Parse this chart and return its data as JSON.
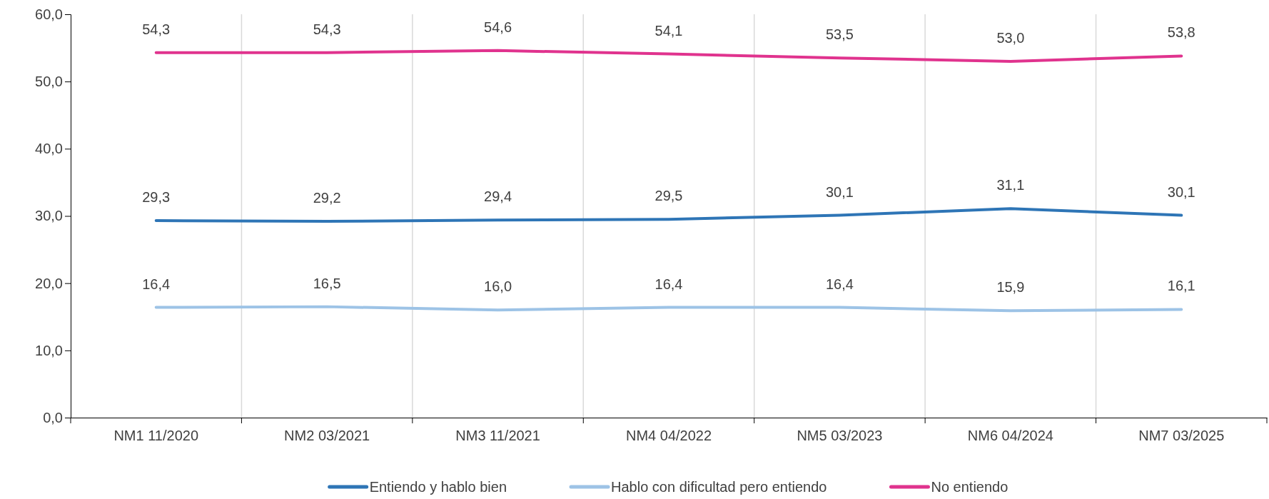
{
  "chart_data": {
    "type": "line",
    "categories": [
      "NM1 11/2020",
      "NM2 03/2021",
      "NM3 11/2021",
      "NM4 04/2022",
      "NM5 03/2023",
      "NM6 04/2024",
      "NM7 03/2025"
    ],
    "series": [
      {
        "name": "Entiendo y hablo bien",
        "color": "#2e75b6",
        "values": [
          29.3,
          29.2,
          29.4,
          29.5,
          30.1,
          31.1,
          30.1
        ],
        "value_labels": [
          "29,3",
          "29,2",
          "29,4",
          "29,5",
          "30,1",
          "31,1",
          "30,1"
        ]
      },
      {
        "name": "Hablo con dificultad pero entiendo",
        "color": "#9dc3e6",
        "values": [
          16.4,
          16.5,
          16.0,
          16.4,
          16.4,
          15.9,
          16.1
        ],
        "value_labels": [
          "16,4",
          "16,5",
          "16,0",
          "16,4",
          "16,4",
          "15,9",
          "16,1"
        ]
      },
      {
        "name": "No entiendo",
        "color": "#e0338e",
        "values": [
          54.3,
          54.3,
          54.6,
          54.1,
          53.5,
          53.0,
          53.8
        ],
        "value_labels": [
          "54,3",
          "54,3",
          "54,6",
          "54,1",
          "53,5",
          "53,0",
          "53,8"
        ]
      }
    ],
    "ylim": [
      0,
      60
    ],
    "yticks": [
      {
        "value": 0,
        "label": "0,0"
      },
      {
        "value": 10,
        "label": "10,0"
      },
      {
        "value": 20,
        "label": "20,0"
      },
      {
        "value": 30,
        "label": "30,0"
      },
      {
        "value": 40,
        "label": "40,0"
      },
      {
        "value": 50,
        "label": "50,0"
      },
      {
        "value": 60,
        "label": "60,0"
      }
    ],
    "grid": "x",
    "legend": "bottom",
    "marker": "none",
    "line_style": "solid"
  }
}
